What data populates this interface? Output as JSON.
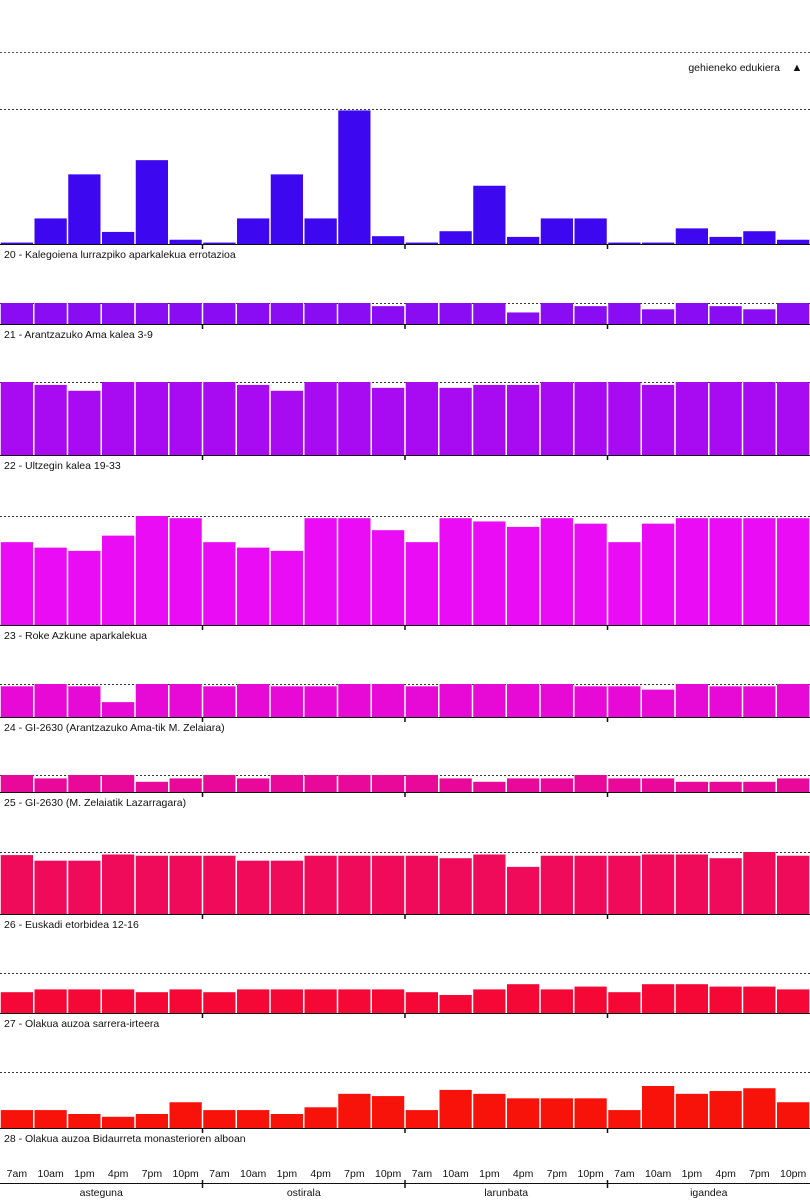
{
  "legend": {
    "label": "gehieneko edukiera",
    "marker": "▲"
  },
  "chart_data": {
    "type": "bar",
    "days": [
      "asteguna",
      "ostirala",
      "larunbata",
      "igandea"
    ],
    "hours": [
      "7am",
      "10am",
      "1pm",
      "4pm",
      "7pm",
      "10pm"
    ],
    "series": [
      {
        "name": "20 - Kalegoiena lurrazpiko aparkalekua errotazioa",
        "color": "#3d08f0",
        "max": 190,
        "values": [
          2,
          36,
          98,
          17,
          118,
          6,
          2,
          36,
          98,
          36,
          188,
          11,
          2,
          18,
          82,
          10,
          36,
          36,
          2,
          2,
          22,
          10,
          18,
          6
        ]
      },
      {
        "name": "21 - Arantzazuko Ama kalea 3-9",
        "color": "#8a0cf2",
        "max": 100,
        "values": [
          100,
          100,
          100,
          100,
          100,
          100,
          100,
          100,
          100,
          100,
          100,
          85,
          100,
          100,
          100,
          55,
          100,
          85,
          100,
          70,
          100,
          85,
          70,
          100
        ]
      },
      {
        "name": "22 - Ultzegin kalea 19-33",
        "color": "#a80bf2",
        "max": 100,
        "values": [
          100,
          96,
          88,
          100,
          100,
          100,
          100,
          96,
          88,
          100,
          100,
          92,
          100,
          92,
          96,
          96,
          100,
          100,
          100,
          96,
          100,
          100,
          100,
          100
        ]
      },
      {
        "name": "23 - Roke Azkune aparkalekua",
        "color": "#ea0cf5",
        "max": 100,
        "values": [
          76,
          71,
          68,
          82,
          100,
          98,
          76,
          71,
          68,
          98,
          98,
          87,
          76,
          98,
          95,
          90,
          98,
          93,
          76,
          93,
          98,
          98,
          98,
          98
        ]
      },
      {
        "name": "24 - GI-2630 (Arantzazuko Ama-tik M. Zelaiara)",
        "color": "#e70ad6",
        "max": 100,
        "values": [
          93,
          100,
          93,
          45,
          100,
          100,
          93,
          100,
          93,
          93,
          100,
          100,
          93,
          100,
          100,
          100,
          100,
          93,
          93,
          83,
          100,
          93,
          93,
          100
        ]
      },
      {
        "name": "25 - GI-2630 (M. Zelaiatik Lazarragara)",
        "color": "#e8089a",
        "max": 100,
        "values": [
          100,
          80,
          100,
          100,
          60,
          80,
          100,
          80,
          100,
          100,
          100,
          100,
          100,
          80,
          60,
          80,
          80,
          100,
          80,
          80,
          60,
          60,
          60,
          80
        ]
      },
      {
        "name": "26 - Euskadi etorbidea 12-16",
        "color": "#f00a5a",
        "max": 100,
        "values": [
          95,
          86,
          86,
          96,
          94,
          94,
          94,
          86,
          86,
          94,
          94,
          94,
          94,
          90,
          96,
          76,
          94,
          94,
          94,
          96,
          96,
          90,
          100,
          94
        ]
      },
      {
        "name": "27 - Olakua auzoa sarrera-irteera",
        "color": "#f50835",
        "max": 100,
        "values": [
          52,
          59,
          59,
          59,
          52,
          59,
          52,
          59,
          59,
          59,
          59,
          59,
          52,
          45,
          59,
          72,
          59,
          66,
          52,
          72,
          72,
          66,
          66,
          59
        ]
      },
      {
        "name": "28 - Olakua auzoa Bidaurreta monasterioren alboan",
        "color": "#f7120a",
        "max": 100,
        "values": [
          32,
          32,
          25,
          20,
          25,
          46,
          32,
          32,
          25,
          37,
          61,
          57,
          32,
          68,
          61,
          53,
          53,
          53,
          32,
          75,
          61,
          66,
          71,
          46
        ]
      }
    ]
  }
}
